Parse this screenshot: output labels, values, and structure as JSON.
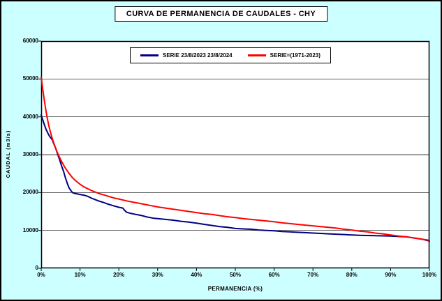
{
  "chart_data": {
    "type": "line",
    "title": "CURVA DE PERMANENCIA DE CAUDALES - CHY",
    "xlabel": "PERMANENCIA (%)",
    "ylabel": "CAUDAL (m3/s)",
    "xlim": [
      0,
      100
    ],
    "ylim": [
      0,
      60000
    ],
    "grid": "horizontal",
    "legend_position": "top-center-inside",
    "background_color": "#CCFFFF",
    "plot_background": "#FFFFFF",
    "x_ticks": [
      0,
      10,
      20,
      30,
      40,
      50,
      60,
      70,
      80,
      90,
      100
    ],
    "x_tick_labels": [
      "0%",
      "10%",
      "20%",
      "30%",
      "40%",
      "50%",
      "60%",
      "70%",
      "80%",
      "90%",
      "100%"
    ],
    "y_ticks": [
      0,
      10000,
      20000,
      30000,
      40000,
      50000,
      60000
    ],
    "y_tick_labels": [
      "0",
      "10000",
      "20000",
      "30000",
      "40000",
      "50000",
      "60000"
    ],
    "series": [
      {
        "name": "SERIE 23/8/2023 23/8/2024",
        "color": "#000080",
        "points": [
          [
            0,
            40500
          ],
          [
            0.3,
            39500
          ],
          [
            0.8,
            38000
          ],
          [
            1.2,
            36800
          ],
          [
            1.8,
            35500
          ],
          [
            2.2,
            34800
          ],
          [
            2.8,
            34000
          ],
          [
            3.2,
            33000
          ],
          [
            3.8,
            31500
          ],
          [
            4.2,
            30200
          ],
          [
            4.8,
            28500
          ],
          [
            5.2,
            27200
          ],
          [
            5.8,
            25500
          ],
          [
            6.2,
            24000
          ],
          [
            6.8,
            22200
          ],
          [
            7.2,
            21200
          ],
          [
            7.8,
            20300
          ],
          [
            8.2,
            19900
          ],
          [
            9,
            19700
          ],
          [
            10,
            19500
          ],
          [
            11,
            19300
          ],
          [
            12,
            19000
          ],
          [
            13,
            18500
          ],
          [
            14,
            18100
          ],
          [
            15,
            17700
          ],
          [
            16,
            17400
          ],
          [
            17,
            17000
          ],
          [
            18,
            16700
          ],
          [
            19,
            16400
          ],
          [
            20,
            16100
          ],
          [
            21,
            15900
          ],
          [
            21.5,
            15300
          ],
          [
            22,
            14800
          ],
          [
            23,
            14500
          ],
          [
            24,
            14300
          ],
          [
            25,
            14100
          ],
          [
            26,
            13900
          ],
          [
            27,
            13600
          ],
          [
            28,
            13400
          ],
          [
            29,
            13200
          ],
          [
            30,
            13100
          ],
          [
            32,
            12900
          ],
          [
            34,
            12700
          ],
          [
            36,
            12400
          ],
          [
            38,
            12200
          ],
          [
            40,
            11900
          ],
          [
            42,
            11600
          ],
          [
            44,
            11300
          ],
          [
            46,
            11000
          ],
          [
            48,
            10800
          ],
          [
            50,
            10500
          ],
          [
            52,
            10400
          ],
          [
            54,
            10300
          ],
          [
            56,
            10100
          ],
          [
            58,
            10000
          ],
          [
            60,
            9900
          ],
          [
            62,
            9700
          ],
          [
            64,
            9600
          ],
          [
            66,
            9500
          ],
          [
            68,
            9400
          ],
          [
            70,
            9300
          ],
          [
            72,
            9200
          ],
          [
            74,
            9100
          ],
          [
            76,
            9000
          ],
          [
            78,
            8900
          ],
          [
            80,
            8800
          ],
          [
            82,
            8700
          ],
          [
            84,
            8650
          ],
          [
            86,
            8600
          ],
          [
            88,
            8550
          ],
          [
            90,
            8500
          ],
          [
            92,
            8400
          ],
          [
            94,
            8300
          ],
          [
            96,
            8000
          ],
          [
            98,
            7700
          ],
          [
            100,
            7200
          ]
        ]
      },
      {
        "name": "SERIE=(1971-2023)",
        "color": "#FF0000",
        "points": [
          [
            0,
            50500
          ],
          [
            0.5,
            46500
          ],
          [
            1,
            43000
          ],
          [
            1.5,
            40000
          ],
          [
            2,
            37500
          ],
          [
            2.5,
            35500
          ],
          [
            3,
            33800
          ],
          [
            3.5,
            32300
          ],
          [
            4,
            31000
          ],
          [
            4.5,
            29800
          ],
          [
            5,
            28700
          ],
          [
            6,
            26800
          ],
          [
            7,
            25300
          ],
          [
            8,
            24000
          ],
          [
            9,
            23000
          ],
          [
            10,
            22200
          ],
          [
            11,
            21500
          ],
          [
            12,
            21000
          ],
          [
            13,
            20500
          ],
          [
            14,
            20100
          ],
          [
            15,
            19700
          ],
          [
            16,
            19400
          ],
          [
            17,
            19100
          ],
          [
            18,
            18800
          ],
          [
            19,
            18500
          ],
          [
            20,
            18300
          ],
          [
            22,
            17800
          ],
          [
            24,
            17400
          ],
          [
            26,
            17000
          ],
          [
            28,
            16600
          ],
          [
            30,
            16200
          ],
          [
            32,
            15900
          ],
          [
            34,
            15600
          ],
          [
            36,
            15300
          ],
          [
            38,
            15000
          ],
          [
            40,
            14700
          ],
          [
            42,
            14400
          ],
          [
            44,
            14200
          ],
          [
            46,
            13900
          ],
          [
            48,
            13600
          ],
          [
            50,
            13400
          ],
          [
            52,
            13100
          ],
          [
            54,
            12900
          ],
          [
            56,
            12700
          ],
          [
            58,
            12500
          ],
          [
            60,
            12300
          ],
          [
            62,
            12000
          ],
          [
            64,
            11800
          ],
          [
            66,
            11600
          ],
          [
            68,
            11400
          ],
          [
            70,
            11200
          ],
          [
            72,
            11000
          ],
          [
            74,
            10800
          ],
          [
            76,
            10600
          ],
          [
            78,
            10300
          ],
          [
            80,
            10100
          ],
          [
            82,
            9800
          ],
          [
            84,
            9600
          ],
          [
            86,
            9300
          ],
          [
            88,
            9100
          ],
          [
            90,
            8800
          ],
          [
            92,
            8500
          ],
          [
            94,
            8300
          ],
          [
            96,
            8000
          ],
          [
            98,
            7700
          ],
          [
            100,
            7400
          ]
        ]
      }
    ]
  }
}
